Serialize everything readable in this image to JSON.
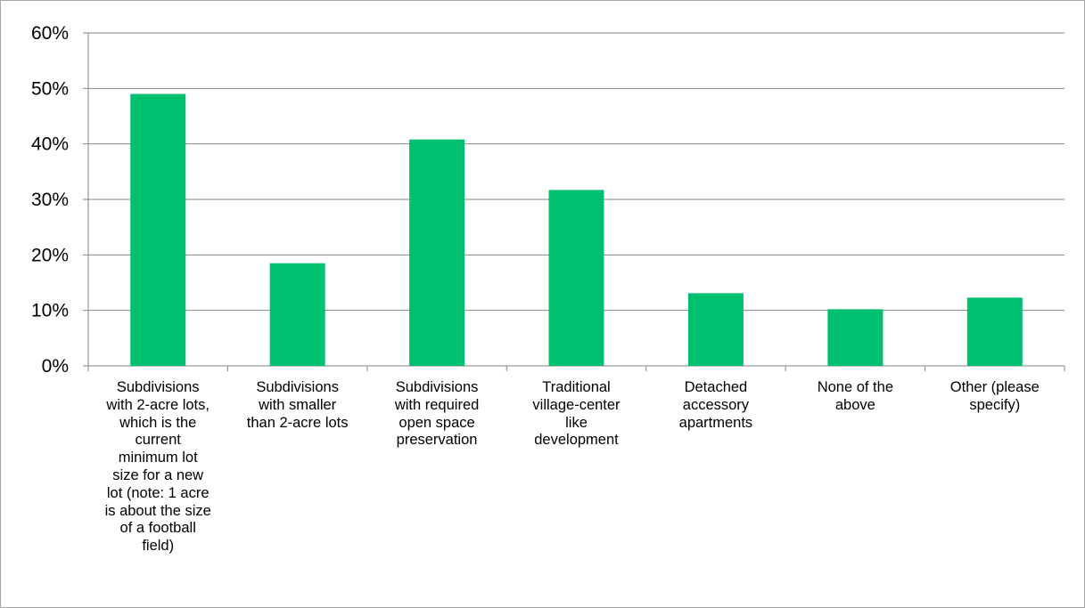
{
  "chart_data": {
    "type": "bar",
    "categories": [
      "Subdivisions\nwith 2-acre lots,\nwhich is the\ncurrent\nminimum lot\nsize for a new\nlot (note: 1 acre\nis about the size\nof a football\nfield)",
      "Subdivisions\nwith smaller\nthan 2-acre lots",
      "Subdivisions\nwith required\nopen space\npreservation",
      "Traditional\nvillage-center\nlike\ndevelopment",
      "Detached\naccessory\napartments",
      "None of the\nabove",
      "Other (please\nspecify)"
    ],
    "values": [
      0.49,
      0.185,
      0.408,
      0.317,
      0.131,
      0.102,
      0.123
    ],
    "ylim": [
      0,
      0.6
    ],
    "yticks": [
      "0%",
      "10%",
      "20%",
      "30%",
      "40%",
      "50%",
      "60%"
    ],
    "grid": true,
    "bar_color": "#00bf6f",
    "grid_color": "#868686"
  }
}
